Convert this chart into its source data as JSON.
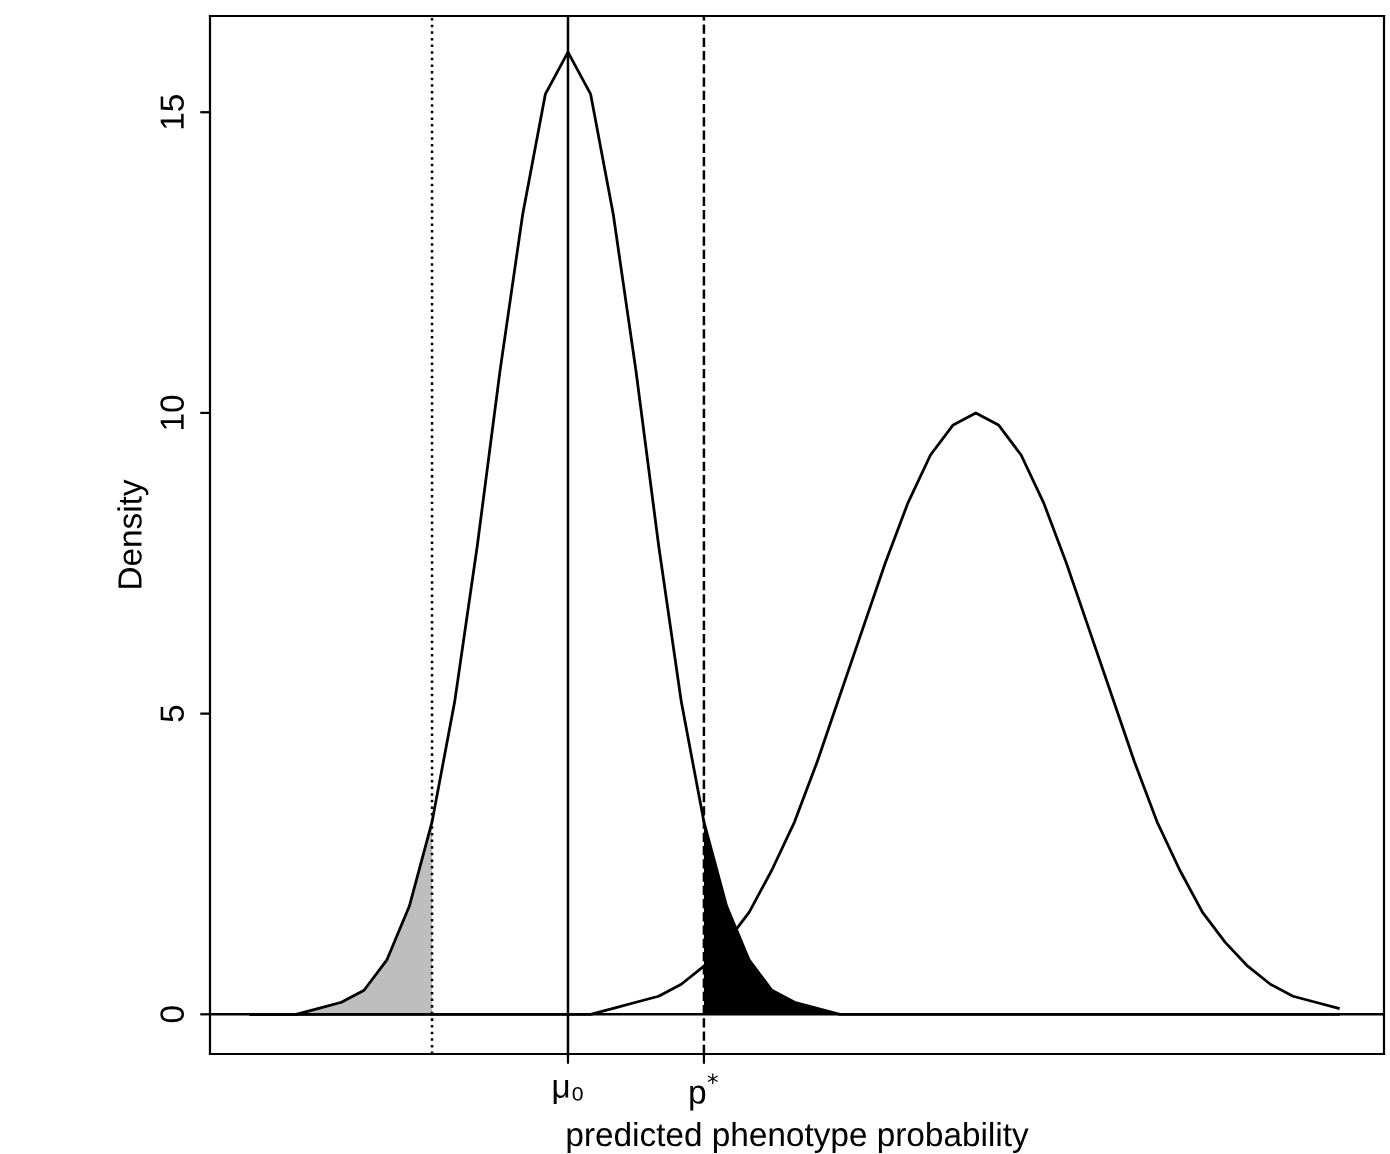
{
  "chart_data": {
    "type": "line",
    "xlabel": "predicted phenotype probability",
    "ylabel": "Density",
    "categories": [
      null,
      null,
      null,
      null,
      null,
      null,
      null,
      null,
      null,
      null,
      null,
      null,
      null,
      null,
      "μ₀",
      null,
      null,
      null,
      null,
      null,
      "p$^{*}$",
      null,
      null,
      null,
      null,
      null,
      null,
      null,
      null,
      null,
      null,
      null,
      null,
      null,
      null,
      null,
      null,
      null,
      null,
      null,
      null,
      null,
      null,
      null,
      null,
      null,
      null,
      null,
      null
    ],
    "series": [
      {
        "color": "#000000",
        "values": [
          0,
          0,
          0,
          0.1,
          0.2,
          0.4,
          0.9,
          1.8,
          3.2,
          5.2,
          7.8,
          10.7,
          13.3,
          15.3,
          16,
          15.3,
          13.3,
          10.7,
          7.8,
          5.2,
          3.2,
          1.8,
          0.9,
          0.4,
          0.2,
          0.1,
          0,
          0,
          0,
          0,
          0,
          0,
          0,
          0,
          0,
          0,
          0,
          0,
          0,
          0,
          0,
          0,
          0,
          0,
          0,
          0,
          0,
          0,
          0
        ]
      },
      {
        "color": "#000000",
        "values": [
          0,
          0,
          0,
          0,
          0,
          0,
          0,
          0,
          0,
          0,
          0,
          0,
          0,
          0,
          0,
          0,
          0.1,
          0.2,
          0.3,
          0.5,
          0.8,
          1.2,
          1.7,
          2.4,
          3.2,
          4.2,
          5.3,
          6.4,
          7.5,
          8.5,
          9.3,
          9.8,
          10,
          9.8,
          9.3,
          8.5,
          7.5,
          6.4,
          5.3,
          4.2,
          3.2,
          2.4,
          1.7,
          1.2,
          0.8,
          0.5,
          0.3,
          0.2,
          0.1
        ]
      },
      {
        "type": "area",
        "color": "#bebebe",
        "values": [
          0,
          0,
          0,
          0.1,
          0.2,
          0.4,
          0.9,
          1.8,
          3.2,
          null,
          null,
          null,
          null,
          null,
          null,
          null,
          null,
          null,
          null,
          null,
          null,
          null,
          null,
          null,
          null,
          null,
          null,
          null,
          null,
          null,
          null,
          null,
          null,
          null,
          null,
          null,
          null,
          null,
          null,
          null,
          null,
          null,
          null,
          null,
          null,
          null,
          null,
          null,
          null
        ]
      },
      {
        "type": "area",
        "color": "#000000",
        "values": [
          null,
          null,
          null,
          null,
          null,
          null,
          null,
          null,
          null,
          null,
          null,
          null,
          null,
          null,
          null,
          null,
          null,
          null,
          null,
          null,
          3.2,
          1.8,
          0.9,
          0.4,
          0.2,
          0.1,
          0,
          0,
          0,
          null,
          null,
          null,
          null,
          null,
          null,
          null,
          null,
          null,
          null,
          null,
          null,
          null,
          null,
          null,
          null,
          null,
          null,
          null,
          null
        ]
      }
    ],
    "ref_lines": [
      {
        "axis": "y",
        "value": 0,
        "line_style": "solid"
      }
    ],
    "ylim": [
      -0.66,
      16.6
    ],
    "yticks": [
      0,
      5,
      10,
      15
    ],
    "grid": "x",
    "legend": false
  }
}
